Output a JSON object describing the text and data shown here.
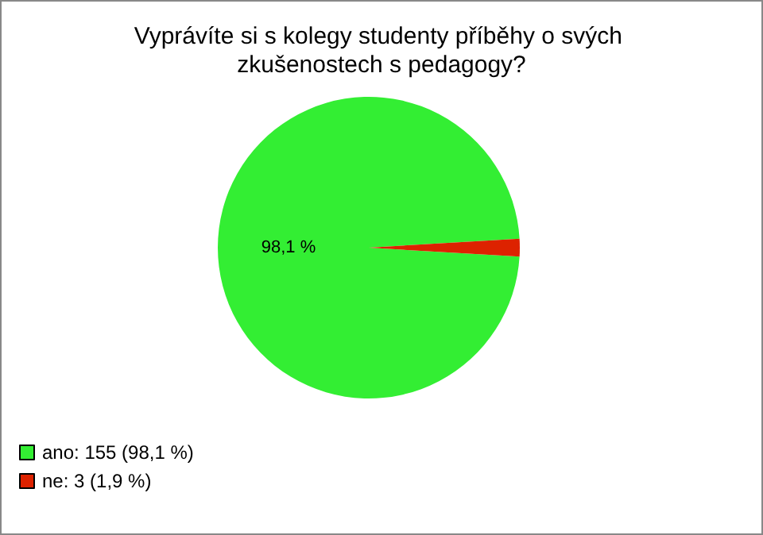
{
  "chart_data": {
    "type": "pie",
    "title": "Vyprávíte si s kolegy studenty příběhy o svých zkušenostech s pedagogy?",
    "categories": [
      "ano: 155 (98,1 %)",
      "ne: 3 (1,9 %)"
    ],
    "values": [
      98.1,
      1.9
    ],
    "colors": [
      "#33ee33",
      "#dd2200"
    ],
    "value_labels": [
      "98,1 %",
      null
    ],
    "legend": "bottom left"
  }
}
